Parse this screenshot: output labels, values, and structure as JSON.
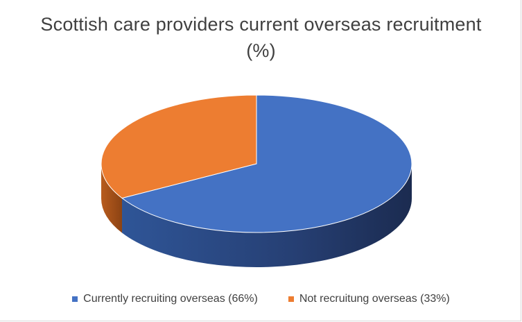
{
  "chart_data": {
    "type": "pie",
    "title_line1": "Scottish care providers current overseas recruitment",
    "title_line2": "(%)",
    "series": [
      {
        "name": "Currently recruiting overseas (66%)",
        "value": 66,
        "color": "#4472c4"
      },
      {
        "name": "Not recruitung overseas (33%)",
        "value": 33,
        "color": "#ed7d31"
      }
    ],
    "style": "3d",
    "legend_position": "bottom"
  }
}
